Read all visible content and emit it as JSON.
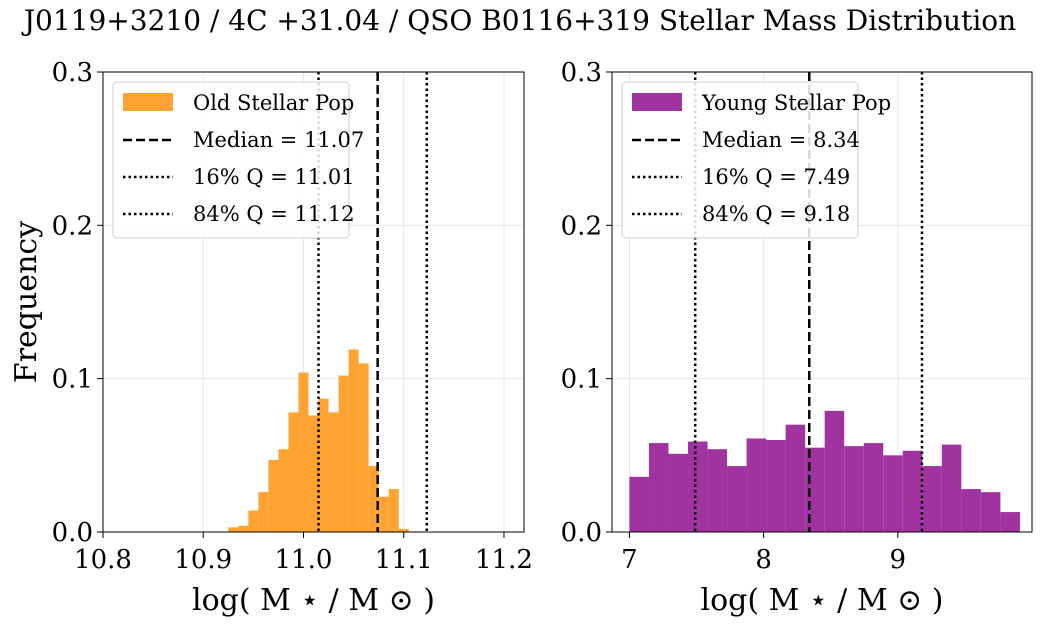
{
  "figure": {
    "title": "J0119+3210 / 4C +31.04 / QSO B0116+319 Stellar Mass Distribution"
  },
  "chart_data": [
    {
      "type": "bar",
      "xlabel": "log( M ⋆ / M ⊙ )",
      "ylabel": "Frequency",
      "xlim": [
        10.8,
        11.22
      ],
      "ylim": [
        0,
        0.3
      ],
      "xticks": [
        "10.8",
        "10.9",
        "11.0",
        "11.1",
        "11.2"
      ],
      "xtick_values": [
        10.8,
        10.9,
        11.0,
        11.1,
        11.2
      ],
      "yticks": [
        "0.0",
        "0.1",
        "0.2",
        "0.3"
      ],
      "ytick_values": [
        0,
        0.1,
        0.2,
        0.3
      ],
      "grid": true,
      "legend_position": "top-left",
      "color": "#ffa333",
      "series_name": "Old Stellar Pop",
      "bin_start": 10.925,
      "bin_width": 0.01,
      "values": [
        0.003,
        0.004,
        0.014,
        0.026,
        0.047,
        0.054,
        0.078,
        0.104,
        0.076,
        0.087,
        0.078,
        0.102,
        0.119,
        0.11,
        0.043,
        0.023,
        0.028,
        0.002
      ],
      "vlines": [
        {
          "label": "Median = 11.07",
          "x": 11.074,
          "style": "dashed"
        },
        {
          "label": "16% Q = 11.01",
          "x": 11.015,
          "style": "dotted"
        },
        {
          "label": "84% Q = 11.12",
          "x": 11.123,
          "style": "dotted"
        }
      ]
    },
    {
      "type": "bar",
      "xlabel": "log( M ⋆ / M ⊙ )",
      "ylabel": "",
      "xlim": [
        6.87,
        10.0
      ],
      "ylim": [
        0,
        0.3
      ],
      "xticks": [
        "7",
        "8",
        "9"
      ],
      "xtick_values": [
        7,
        8,
        9
      ],
      "yticks": [
        "0.0",
        "0.1",
        "0.2",
        "0.3"
      ],
      "ytick_values": [
        0,
        0.1,
        0.2,
        0.3
      ],
      "grid": true,
      "legend_position": "top-left",
      "color": "#a033a0",
      "series_name": "Young Stellar Pop",
      "bin_start": 7.0,
      "bin_width": 0.1455,
      "values": [
        0.036,
        0.058,
        0.051,
        0.059,
        0.054,
        0.043,
        0.061,
        0.06,
        0.07,
        0.055,
        0.079,
        0.056,
        0.058,
        0.05,
        0.053,
        0.043,
        0.057,
        0.028,
        0.026,
        0.013
      ],
      "vlines": [
        {
          "label": "Median = 8.34",
          "x": 8.34,
          "style": "dashed"
        },
        {
          "label": "16% Q = 7.49",
          "x": 7.49,
          "style": "dotted"
        },
        {
          "label": "84% Q = 9.18",
          "x": 9.18,
          "style": "dotted"
        }
      ]
    }
  ]
}
